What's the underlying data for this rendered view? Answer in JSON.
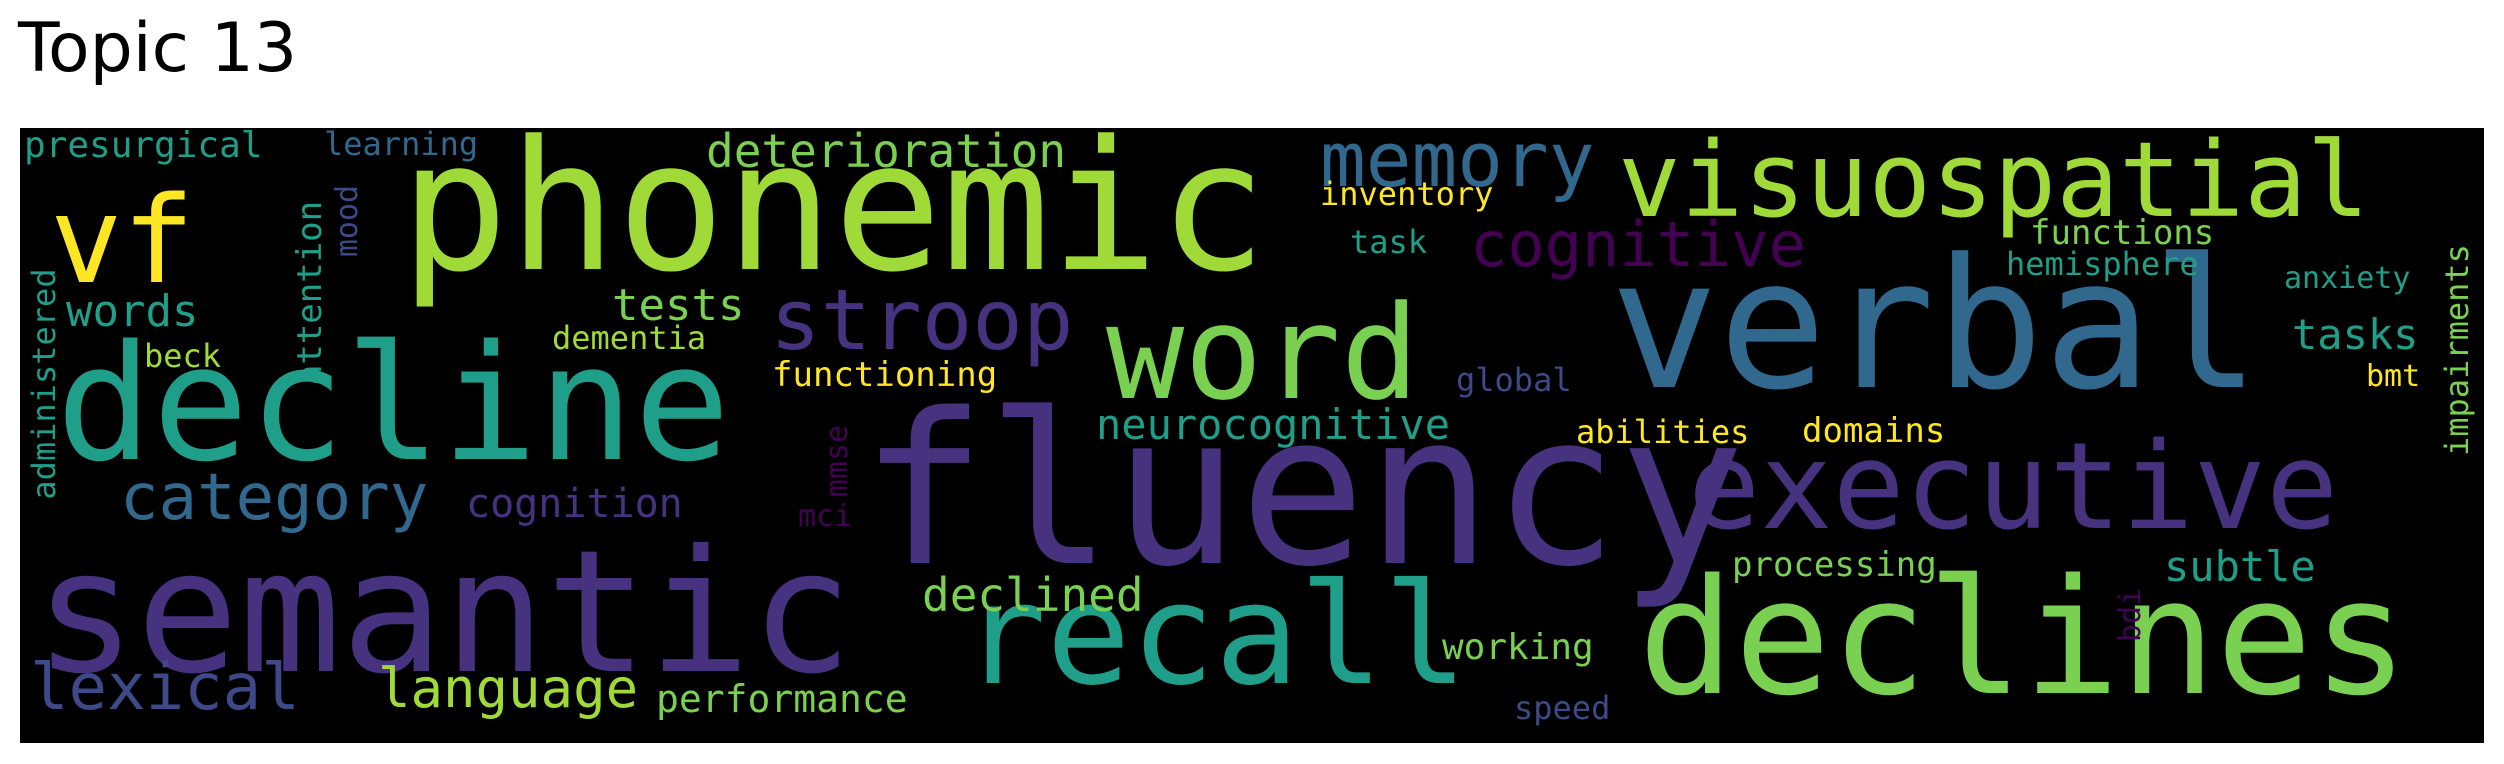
{
  "title": "Topic 13",
  "words": {
    "fluency": "fluency",
    "verbal": "verbal",
    "phonemic": "phonemic",
    "semantic": "semantic",
    "decline": "decline",
    "declines": "declines",
    "executive": "executive",
    "word": "word",
    "recall": "recall",
    "visuospatial": "visuospatial",
    "vf": "vf",
    "stroop": "stroop",
    "memory": "memory",
    "category": "category",
    "cognitive": "cognitive",
    "lexical": "lexical",
    "language": "language",
    "neurocognitive": "neurocognitive",
    "deterioration": "deterioration",
    "declined": "declined",
    "words": "words",
    "tests": "tests",
    "tasks": "tasks",
    "performance": "performance",
    "cognition": "cognition",
    "subtle": "subtle",
    "functioning": "functioning",
    "working": "working",
    "presurgical": "presurgical",
    "functions": "functions",
    "attention": "attention",
    "processing": "processing",
    "domains": "domains",
    "abilities": "abilities",
    "inventory": "inventory",
    "dementia": "dementia",
    "impairments": "impairments",
    "administered": "administered",
    "hemisphere": "hemisphere",
    "anxiety": "anxiety",
    "learning": "learning",
    "speed": "speed",
    "global": "global",
    "task": "task",
    "mood": "mood",
    "beck": "beck",
    "mmse": "mmse",
    "mci": "mci",
    "bdi": "bdi",
    "bmt": "bmt"
  },
  "colors": {
    "background": "#000000",
    "lime": "#a0da39",
    "green": "#7ad151",
    "teal": "#1f9e89",
    "blue": "#31688e",
    "slate": "#3e4989",
    "indigo": "#46327e",
    "purple": "#440154",
    "yellow": "#fde725"
  }
}
